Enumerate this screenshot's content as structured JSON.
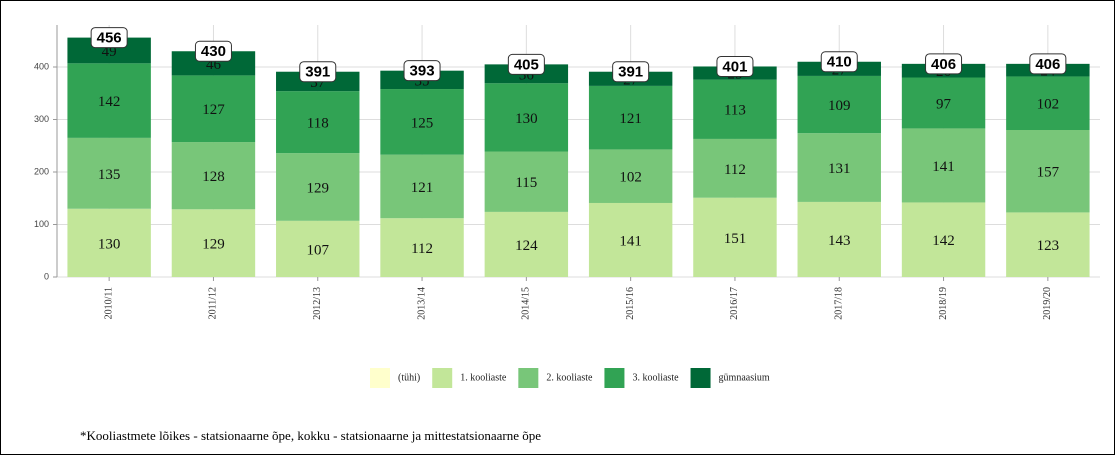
{
  "chart_data": {
    "type": "stacked_bar",
    "categories": [
      "2010/11",
      "2011/12",
      "2012/13",
      "2013/14",
      "2014/15",
      "2015/16",
      "2016/17",
      "2017/18",
      "2018/19",
      "2019/20"
    ],
    "series": [
      {
        "name": "(tühi)",
        "color": "#ffffcc"
      },
      {
        "name": "1. kooliaste",
        "color": "#c2e699",
        "values": [
          130,
          129,
          107,
          112,
          124,
          141,
          151,
          143,
          142,
          123
        ]
      },
      {
        "name": "2. kooliaste",
        "color": "#78c679",
        "values": [
          135,
          128,
          129,
          121,
          115,
          102,
          112,
          131,
          141,
          157
        ]
      },
      {
        "name": "3. kooliaste",
        "color": "#31a354",
        "values": [
          142,
          127,
          118,
          125,
          130,
          121,
          113,
          109,
          97,
          102
        ]
      },
      {
        "name": "gümnaasium",
        "color": "#006837",
        "values": [
          49,
          46,
          37,
          35,
          36,
          27,
          25,
          27,
          26,
          24
        ]
      }
    ],
    "totals": [
      456,
      430,
      391,
      393,
      405,
      391,
      401,
      410,
      406,
      406
    ],
    "ylim": [
      0,
      480
    ],
    "yticks": [
      0,
      100,
      200,
      300,
      400
    ],
    "grid": true,
    "footnote": "*Kooliastmete lõikes - statsionaarne õpe, kokku - statsionaarne ja mittestatsionaarne õpe"
  }
}
